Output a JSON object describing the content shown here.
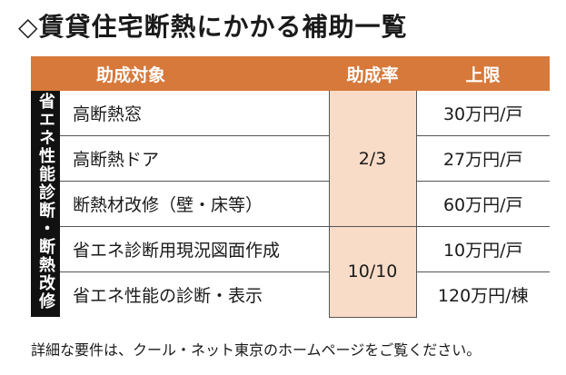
{
  "title": "◇賃貸住宅断熱にかかる補助一覧",
  "table": {
    "headers": {
      "target": "助成対象",
      "rate": "助成率",
      "limit": "上限"
    },
    "category": "省エネ性能診断・断熱改修",
    "rows": [
      {
        "target": "高断熱窓",
        "limit": "30万円/戸"
      },
      {
        "target": "高断熱ドア",
        "limit": "27万円/戸"
      },
      {
        "target": "断熱材改修（壁・床等）",
        "limit": "60万円/戸"
      },
      {
        "target": "省エネ診断用現況図面作成",
        "limit": "10万円/戸"
      },
      {
        "target": "省エネ性能の診断・表示",
        "limit": "120万円/棟"
      }
    ],
    "rates": [
      "2/3",
      "10/10"
    ]
  },
  "note": "詳細な要件は、クール・ネット東京のホームページをご覧ください。",
  "colors": {
    "header_bg": "#d6793b",
    "rate_bg": "#f8dcc7",
    "category_bg": "#111111"
  }
}
